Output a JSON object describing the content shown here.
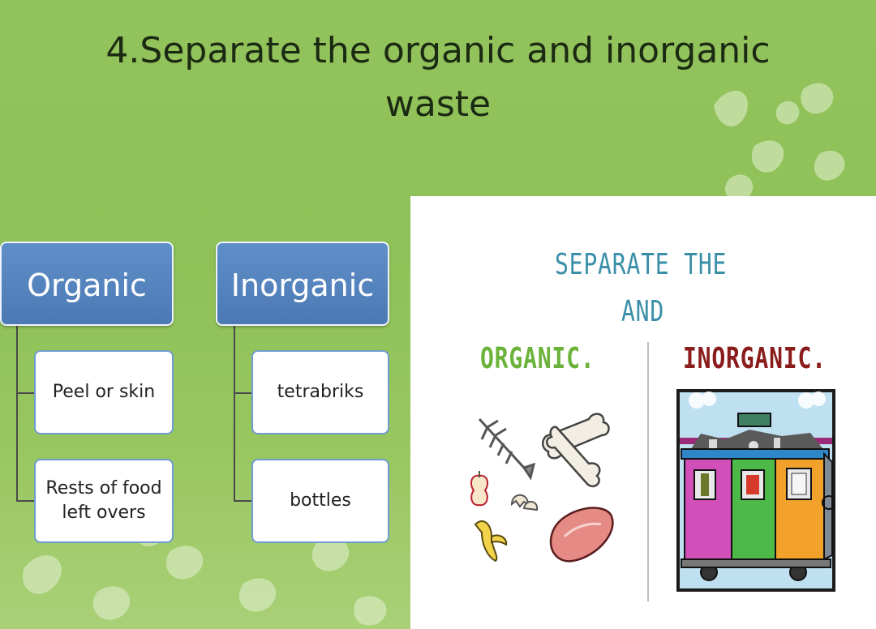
{
  "slide": {
    "title_line1": "4.Separate the organic and inorganic",
    "title_line2": "waste"
  },
  "diagram": {
    "organic": {
      "heading": "Organic",
      "items": [
        "Peel or skin",
        "Rests of food left overs"
      ]
    },
    "inorganic": {
      "heading": "Inorganic",
      "items": [
        "tetrabriks",
        "bottles"
      ]
    }
  },
  "illustration": {
    "line1": "SEPARATE THE",
    "line2": "AND",
    "organic_label": "ORGANIC.",
    "inorganic_label": "INORGANIC.",
    "colors": {
      "heading": "#3a8fa8",
      "organic": "#6bb33a",
      "inorganic": "#8a1c1c"
    }
  }
}
